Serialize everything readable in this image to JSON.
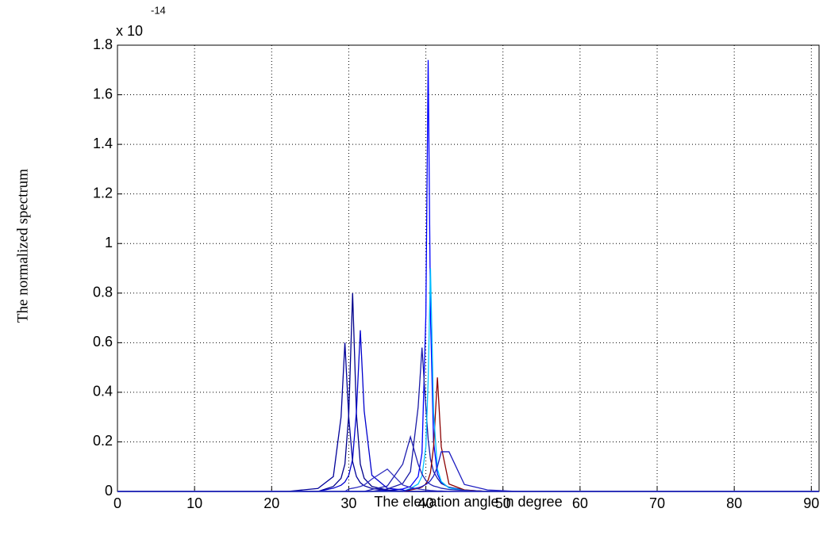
{
  "chart_data": {
    "type": "line",
    "y_multiplier": "x 10",
    "y_exponent": "-14",
    "xlabel": "The elevation angle in degree",
    "ylabel": "The normalized spectrum",
    "x": [
      0,
      22,
      26,
      28,
      29,
      29.5,
      30,
      30.5,
      31,
      31.5,
      32,
      33,
      35,
      37,
      38,
      39,
      39.5,
      40,
      40.3,
      40.6,
      41,
      41.5,
      42,
      43,
      45,
      48,
      52,
      91
    ],
    "series": [
      {
        "color": "#0000ff",
        "values": [
          0,
          0,
          0,
          0,
          0,
          0,
          0,
          0,
          0,
          0,
          0,
          0,
          0.004,
          0.01,
          0.02,
          0.06,
          0.155,
          0.71,
          1.74,
          0.71,
          0.2,
          0.07,
          0.037,
          0.015,
          0.005,
          0,
          0,
          0
        ]
      },
      {
        "color": "#00008b",
        "values": [
          0,
          0,
          0,
          0.02,
          0.053,
          0.11,
          0.31,
          0.8,
          0.31,
          0.11,
          0.053,
          0.02,
          0.006,
          0,
          0,
          0,
          0,
          0,
          0,
          0,
          0,
          0,
          0,
          0,
          0,
          0,
          0,
          0
        ]
      },
      {
        "color": "#0000cd",
        "values": [
          0,
          0,
          0,
          0.013,
          0.025,
          0.038,
          0.065,
          0.13,
          0.325,
          0.65,
          0.325,
          0.065,
          0.013,
          0.006,
          0,
          0,
          0,
          0,
          0,
          0,
          0,
          0,
          0,
          0,
          0,
          0,
          0,
          0
        ]
      },
      {
        "color": "#000099",
        "values": [
          0,
          0,
          0.012,
          0.06,
          0.3,
          0.6,
          0.3,
          0.12,
          0.06,
          0.035,
          0.023,
          0.012,
          0.005,
          0,
          0,
          0,
          0,
          0,
          0,
          0,
          0,
          0,
          0,
          0,
          0,
          0,
          0,
          0
        ]
      },
      {
        "color": "#1a1aa6",
        "values": [
          0,
          0,
          0,
          0,
          0,
          0,
          0,
          0,
          0,
          0,
          0,
          0,
          0.01,
          0.032,
          0.08,
          0.34,
          0.58,
          0.34,
          0.21,
          0.13,
          0.08,
          0.053,
          0.032,
          0.017,
          0.006,
          0,
          0,
          0
        ]
      },
      {
        "color": "#8b0000",
        "values": [
          0,
          0,
          0,
          0,
          0,
          0,
          0,
          0,
          0,
          0,
          0,
          0,
          0,
          0,
          0.006,
          0.012,
          0.018,
          0.03,
          0.046,
          0.076,
          0.18,
          0.46,
          0.18,
          0.03,
          0.006,
          0,
          0,
          0
        ]
      },
      {
        "color": "#00bfff",
        "values": [
          0,
          0,
          0,
          0,
          0,
          0,
          0,
          0,
          0,
          0,
          0,
          0,
          0,
          0,
          0.012,
          0.03,
          0.062,
          0.18,
          0.45,
          0.9,
          0.32,
          0.09,
          0.04,
          0.014,
          0.004,
          0,
          0,
          0
        ]
      },
      {
        "color": "#2020b0",
        "values": [
          0,
          0,
          0,
          0,
          0,
          0,
          0,
          0,
          0,
          0,
          0,
          0.008,
          0.022,
          0.11,
          0.22,
          0.11,
          0.07,
          0.044,
          0.035,
          0.028,
          0.022,
          0.018,
          0.013,
          0.008,
          0.004,
          0,
          0,
          0
        ]
      },
      {
        "color": "#1c1cc0",
        "values": [
          0,
          0,
          0,
          0,
          0,
          0,
          0,
          0,
          0,
          0,
          0,
          0,
          0,
          0,
          0.009,
          0.015,
          0.02,
          0.028,
          0.034,
          0.044,
          0.062,
          0.1,
          0.16,
          0.16,
          0.028,
          0.006,
          0,
          0
        ]
      },
      {
        "color": "#3030c0",
        "values": [
          0,
          0,
          0,
          0,
          0,
          0,
          0.01,
          0.013,
          0.016,
          0.02,
          0.026,
          0.05,
          0.09,
          0.026,
          0.016,
          0.01,
          0.008,
          0.006,
          0.005,
          0.004,
          0.003,
          0.002,
          0.002,
          0,
          0,
          0,
          0,
          0
        ]
      }
    ],
    "xlim": [
      0,
      91
    ],
    "ylim": [
      0,
      1.8
    ],
    "xticks": [
      0,
      10,
      20,
      30,
      40,
      50,
      60,
      70,
      80,
      90
    ],
    "yticks": [
      0,
      0.2,
      0.4,
      0.6,
      0.8,
      1,
      1.2,
      1.4,
      1.6,
      1.8
    ],
    "grid": true
  }
}
